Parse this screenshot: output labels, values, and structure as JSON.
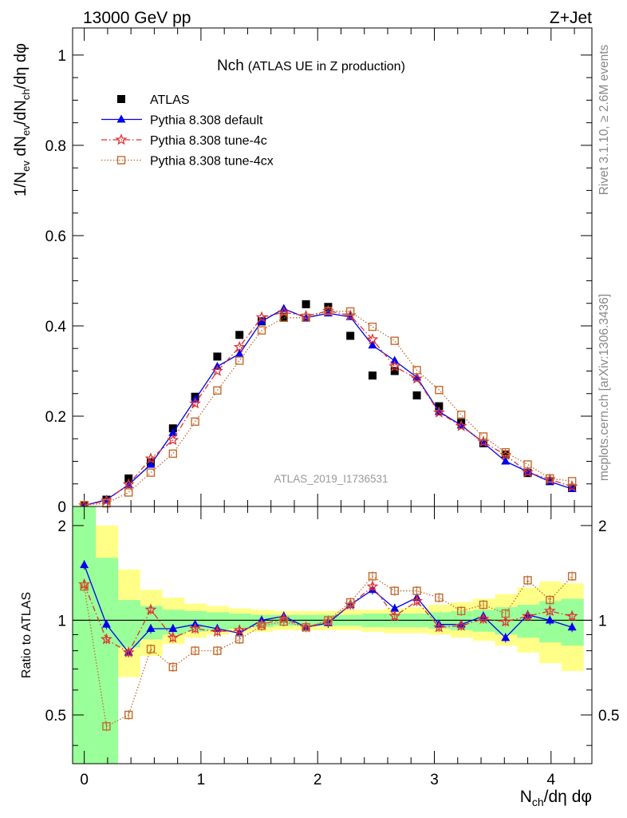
{
  "header": {
    "left": "13000 GeV pp",
    "right": "Z+Jet"
  },
  "side": {
    "top": "Rivet 3.1.10, ≥ 2.6M events",
    "bottom": "mcplots.cern.ch [arXiv:1306.3436]"
  },
  "chart_data": [
    {
      "type": "scatter",
      "title_main": "Nch",
      "title_sub": "(ATLAS UE in Z production)",
      "watermark": "ATLAS_2019_I1736531",
      "ylabel": "1/N_ev dN_ev/dN_ch/dη dφ",
      "xlabel": "N_ch/dη dφ",
      "xlim": [
        -0.1,
        4.35
      ],
      "ylim": [
        0,
        1.06
      ],
      "x_ticks": [
        "0",
        "1",
        "2",
        "3",
        "4"
      ],
      "y_ticks": [
        "0",
        "0.2",
        "0.4",
        "0.6",
        "0.8",
        "1"
      ],
      "legend": {
        "position": "top-left",
        "entries": [
          "ATLAS",
          "Pythia 8.308 default",
          "Pythia 8.308 tune-4c",
          "Pythia 8.308 tune-4cx"
        ]
      },
      "x": [
        0.0,
        0.19,
        0.38,
        0.57,
        0.76,
        0.95,
        1.14,
        1.33,
        1.52,
        1.71,
        1.9,
        2.09,
        2.28,
        2.47,
        2.66,
        2.85,
        3.04,
        3.23,
        3.42,
        3.61,
        3.8,
        3.99,
        4.18
      ],
      "series": [
        {
          "name": "ATLAS",
          "color": "#000000",
          "marker": "square",
          "values": [
            0.002,
            0.015,
            0.062,
            0.098,
            0.173,
            0.243,
            0.332,
            0.38,
            0.41,
            0.42,
            0.448,
            0.442,
            0.378,
            0.29,
            0.3,
            0.246,
            0.222,
            0.188,
            0.14,
            0.115,
            0.074,
            0.056,
            0.041
          ]
        },
        {
          "name": "Pythia 8.308 default",
          "color": "#0000ee",
          "marker": "triangle",
          "line": "solid",
          "values": [
            0.002,
            0.015,
            0.048,
            0.093,
            0.163,
            0.237,
            0.31,
            0.338,
            0.41,
            0.438,
            0.418,
            0.428,
            0.42,
            0.357,
            0.323,
            0.286,
            0.21,
            0.18,
            0.141,
            0.1,
            0.077,
            0.055,
            0.039
          ]
        },
        {
          "name": "Pythia 8.308 tune-4c",
          "color": "#dd3333",
          "marker": "star",
          "line": "dashdot",
          "values": [
            0.002,
            0.013,
            0.049,
            0.106,
            0.147,
            0.228,
            0.3,
            0.353,
            0.419,
            0.43,
            0.422,
            0.433,
            0.423,
            0.37,
            0.31,
            0.283,
            0.208,
            0.178,
            0.143,
            0.114,
            0.076,
            0.06,
            0.044
          ]
        },
        {
          "name": "Pythia 8.308 tune-4cx",
          "color": "#c46a2e",
          "marker": "open-square",
          "line": "dotted",
          "values": [
            0.003,
            0.007,
            0.031,
            0.075,
            0.117,
            0.188,
            0.257,
            0.323,
            0.39,
            0.418,
            0.418,
            0.433,
            0.432,
            0.398,
            0.367,
            0.302,
            0.258,
            0.203,
            0.155,
            0.12,
            0.093,
            0.062,
            0.056
          ]
        }
      ]
    },
    {
      "type": "scatter",
      "ylabel": "Ratio to ATLAS",
      "xlim": [
        -0.1,
        4.35
      ],
      "ylim": [
        0.35,
        2.3
      ],
      "y_ticks": [
        "0.5",
        "1",
        "2"
      ],
      "x": [
        0.0,
        0.19,
        0.38,
        0.57,
        0.76,
        0.95,
        1.14,
        1.33,
        1.52,
        1.71,
        1.9,
        2.09,
        2.28,
        2.47,
        2.66,
        2.85,
        3.04,
        3.23,
        3.42,
        3.61,
        3.8,
        3.99,
        4.18
      ],
      "bands": {
        "x_edges": [
          -0.1,
          0.1,
          0.29,
          0.48,
          0.67,
          0.86,
          1.05,
          1.24,
          1.43,
          1.62,
          1.81,
          2.0,
          2.19,
          2.38,
          2.57,
          2.76,
          2.95,
          3.14,
          3.33,
          3.52,
          3.71,
          3.9,
          4.09,
          4.28
        ],
        "green_lo": [
          0.35,
          0.35,
          0.82,
          0.87,
          0.9,
          0.92,
          0.93,
          0.94,
          0.95,
          0.96,
          0.96,
          0.96,
          0.96,
          0.95,
          0.95,
          0.95,
          0.94,
          0.93,
          0.92,
          0.9,
          0.88,
          0.85,
          0.83
        ],
        "green_hi": [
          2.3,
          1.58,
          1.16,
          1.11,
          1.08,
          1.07,
          1.06,
          1.05,
          1.04,
          1.04,
          1.04,
          1.04,
          1.04,
          1.05,
          1.05,
          1.05,
          1.06,
          1.07,
          1.08,
          1.1,
          1.12,
          1.15,
          1.17
        ],
        "yellow_lo": [
          0.35,
          0.35,
          0.66,
          0.77,
          0.84,
          0.88,
          0.9,
          0.91,
          0.92,
          0.93,
          0.93,
          0.93,
          0.93,
          0.92,
          0.91,
          0.91,
          0.9,
          0.88,
          0.86,
          0.83,
          0.79,
          0.73,
          0.69
        ],
        "yellow_hi": [
          2.3,
          2.0,
          1.45,
          1.25,
          1.18,
          1.13,
          1.11,
          1.09,
          1.08,
          1.07,
          1.07,
          1.07,
          1.08,
          1.08,
          1.09,
          1.1,
          1.12,
          1.14,
          1.17,
          1.21,
          1.27,
          1.33,
          1.31
        ]
      },
      "reference_line": 1,
      "series": [
        {
          "name": "Pythia 8.308 default",
          "color": "#0000ee",
          "values": [
            1.5,
            0.97,
            0.79,
            0.94,
            0.94,
            0.97,
            0.94,
            0.91,
            1.0,
            1.03,
            0.95,
            0.98,
            1.12,
            1.25,
            1.09,
            1.18,
            0.97,
            0.97,
            1.03,
            0.88,
            1.04,
            1.0,
            0.95
          ]
        },
        {
          "name": "Pythia 8.308 tune-4c",
          "color": "#dd3333",
          "values": [
            1.3,
            0.87,
            0.79,
            1.08,
            0.88,
            0.94,
            0.92,
            0.93,
            0.97,
            1.01,
            0.95,
            0.99,
            1.12,
            1.28,
            1.03,
            1.15,
            0.95,
            0.96,
            1.01,
            0.99,
            1.03,
            1.07,
            1.03
          ]
        },
        {
          "name": "Pythia 8.308 tune-4cx",
          "color": "#c46a2e",
          "values": [
            1.28,
            0.46,
            0.5,
            0.81,
            0.71,
            0.8,
            0.8,
            0.87,
            0.96,
            0.99,
            0.95,
            1.0,
            1.14,
            1.38,
            1.24,
            1.24,
            1.18,
            1.07,
            1.12,
            1.05,
            1.34,
            1.16,
            1.38
          ]
        }
      ]
    }
  ]
}
